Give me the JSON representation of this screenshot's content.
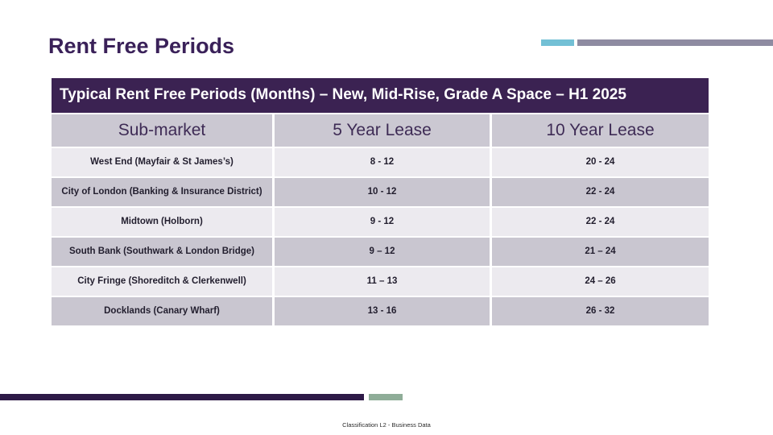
{
  "slide": {
    "title": "Rent Free Periods",
    "footer_text": "Classification L2 - Business Data"
  },
  "table": {
    "caption": "Typical Rent Free Periods (Months) – New, Mid-Rise, Grade A Space – H1 2025",
    "columns": [
      "Sub-market",
      "5 Year Lease",
      "10 Year Lease"
    ],
    "rows": [
      {
        "submarket": "West End (Mayfair & St James’s)",
        "lease5": "8 - 12",
        "lease10": "20 - 24"
      },
      {
        "submarket": "City of London (Banking & Insurance District)",
        "lease5": "10 - 12",
        "lease10": "22 - 24"
      },
      {
        "submarket": "Midtown (Holborn)",
        "lease5": "9 - 12",
        "lease10": "22 - 24"
      },
      {
        "submarket": "South Bank (Southwark & London Bridge)",
        "lease5": "9 – 12",
        "lease10": "21 – 24"
      },
      {
        "submarket": "City Fringe (Shoreditch & Clerkenwell)",
        "lease5": "11 – 13",
        "lease10": "24 – 26"
      },
      {
        "submarket": "Docklands (Canary Wharf)",
        "lease5": "13 - 16",
        "lease10": "26 - 32"
      }
    ]
  },
  "colors": {
    "title_purple": "#3a2159",
    "caption_bg": "#3b2252",
    "header_row_bg": "#cbc8d2",
    "row_light_bg": "#eceaef",
    "row_dark_bg": "#c9c6d0",
    "body_text": "#221e2e",
    "header_text": "#3e2b55",
    "teal_bar": "#73c0d5",
    "gray_bar": "#8e8ba1",
    "bottom_bar_purple": "#2e1a47",
    "bottom_bar_green": "#8fad98"
  }
}
